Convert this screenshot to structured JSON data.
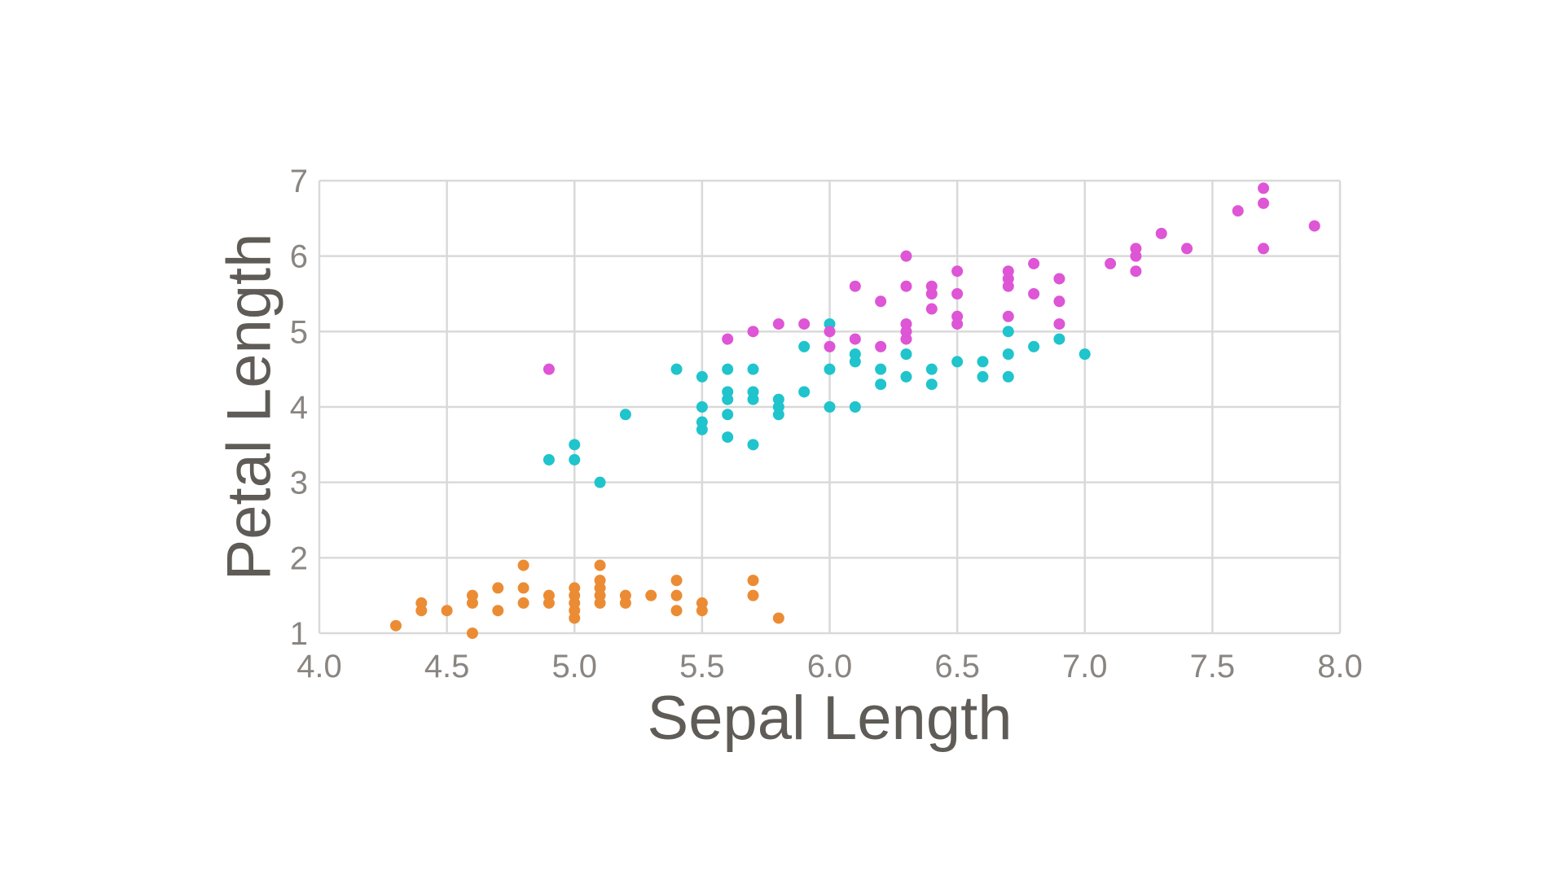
{
  "chart_data": {
    "type": "scatter",
    "xlabel": "Sepal Length",
    "ylabel": "Petal Length",
    "xlim": [
      4.0,
      8.0
    ],
    "ylim": [
      1,
      7
    ],
    "x_ticks": [
      "4.0",
      "4.5",
      "5.0",
      "5.5",
      "6.0",
      "6.5",
      "7.0",
      "7.5",
      "8.0"
    ],
    "y_ticks": [
      "1",
      "2",
      "3",
      "4",
      "5",
      "6",
      "7"
    ],
    "grid": true,
    "legend": "none",
    "series": [
      {
        "color": "#eb8c34",
        "points": [
          [
            4.3,
            1.1
          ],
          [
            4.4,
            1.3
          ],
          [
            4.4,
            1.4
          ],
          [
            4.5,
            1.3
          ],
          [
            4.6,
            1.0
          ],
          [
            4.6,
            1.4
          ],
          [
            4.6,
            1.5
          ],
          [
            4.7,
            1.3
          ],
          [
            4.7,
            1.6
          ],
          [
            4.8,
            1.4
          ],
          [
            4.8,
            1.6
          ],
          [
            4.8,
            1.9
          ],
          [
            4.9,
            1.4
          ],
          [
            4.9,
            1.5
          ],
          [
            5.0,
            1.2
          ],
          [
            5.0,
            1.3
          ],
          [
            5.0,
            1.4
          ],
          [
            5.0,
            1.5
          ],
          [
            5.0,
            1.6
          ],
          [
            5.1,
            1.4
          ],
          [
            5.1,
            1.5
          ],
          [
            5.1,
            1.6
          ],
          [
            5.1,
            1.7
          ],
          [
            5.1,
            1.9
          ],
          [
            5.2,
            1.4
          ],
          [
            5.2,
            1.5
          ],
          [
            5.3,
            1.5
          ],
          [
            5.4,
            1.3
          ],
          [
            5.4,
            1.5
          ],
          [
            5.4,
            1.7
          ],
          [
            5.5,
            1.3
          ],
          [
            5.5,
            1.4
          ],
          [
            5.7,
            1.5
          ],
          [
            5.7,
            1.7
          ],
          [
            5.8,
            1.2
          ]
        ]
      },
      {
        "color": "#1fc4cc",
        "points": [
          [
            4.9,
            3.3
          ],
          [
            5.0,
            3.3
          ],
          [
            5.0,
            3.5
          ],
          [
            5.1,
            3.0
          ],
          [
            5.2,
            3.9
          ],
          [
            5.4,
            4.5
          ],
          [
            5.5,
            3.7
          ],
          [
            5.5,
            3.8
          ],
          [
            5.5,
            4.0
          ],
          [
            5.5,
            4.4
          ],
          [
            5.6,
            3.6
          ],
          [
            5.6,
            3.9
          ],
          [
            5.6,
            4.1
          ],
          [
            5.6,
            4.2
          ],
          [
            5.6,
            4.5
          ],
          [
            5.7,
            3.5
          ],
          [
            5.7,
            4.1
          ],
          [
            5.7,
            4.2
          ],
          [
            5.7,
            4.5
          ],
          [
            5.8,
            3.9
          ],
          [
            5.8,
            4.0
          ],
          [
            5.8,
            4.1
          ],
          [
            5.9,
            4.2
          ],
          [
            5.9,
            4.8
          ],
          [
            6.0,
            4.0
          ],
          [
            6.0,
            4.5
          ],
          [
            6.0,
            5.1
          ],
          [
            6.1,
            4.0
          ],
          [
            6.1,
            4.6
          ],
          [
            6.1,
            4.7
          ],
          [
            6.2,
            4.3
          ],
          [
            6.2,
            4.5
          ],
          [
            6.3,
            4.4
          ],
          [
            6.3,
            4.7
          ],
          [
            6.4,
            4.3
          ],
          [
            6.4,
            4.5
          ],
          [
            6.5,
            4.6
          ],
          [
            6.6,
            4.4
          ],
          [
            6.6,
            4.6
          ],
          [
            6.7,
            4.4
          ],
          [
            6.7,
            4.7
          ],
          [
            6.7,
            5.0
          ],
          [
            6.8,
            4.8
          ],
          [
            6.9,
            4.9
          ],
          [
            7.0,
            4.7
          ]
        ]
      },
      {
        "color": "#de55d6",
        "points": [
          [
            4.9,
            4.5
          ],
          [
            5.6,
            4.9
          ],
          [
            5.7,
            5.0
          ],
          [
            5.8,
            5.1
          ],
          [
            5.9,
            5.1
          ],
          [
            6.0,
            4.8
          ],
          [
            6.0,
            5.0
          ],
          [
            6.1,
            4.9
          ],
          [
            6.1,
            5.6
          ],
          [
            6.2,
            4.8
          ],
          [
            6.2,
            5.4
          ],
          [
            6.3,
            4.9
          ],
          [
            6.3,
            5.0
          ],
          [
            6.3,
            5.1
          ],
          [
            6.3,
            5.6
          ],
          [
            6.3,
            6.0
          ],
          [
            6.4,
            5.3
          ],
          [
            6.4,
            5.5
          ],
          [
            6.4,
            5.6
          ],
          [
            6.5,
            5.1
          ],
          [
            6.5,
            5.2
          ],
          [
            6.5,
            5.5
          ],
          [
            6.5,
            5.8
          ],
          [
            6.7,
            5.2
          ],
          [
            6.7,
            5.6
          ],
          [
            6.7,
            5.7
          ],
          [
            6.7,
            5.8
          ],
          [
            6.8,
            5.5
          ],
          [
            6.8,
            5.9
          ],
          [
            6.9,
            5.1
          ],
          [
            6.9,
            5.4
          ],
          [
            6.9,
            5.7
          ],
          [
            7.1,
            5.9
          ],
          [
            7.2,
            5.8
          ],
          [
            7.2,
            6.0
          ],
          [
            7.2,
            6.1
          ],
          [
            7.3,
            6.3
          ],
          [
            7.4,
            6.1
          ],
          [
            7.6,
            6.6
          ],
          [
            7.7,
            6.1
          ],
          [
            7.7,
            6.7
          ],
          [
            7.7,
            6.9
          ],
          [
            7.9,
            6.4
          ]
        ]
      }
    ]
  }
}
